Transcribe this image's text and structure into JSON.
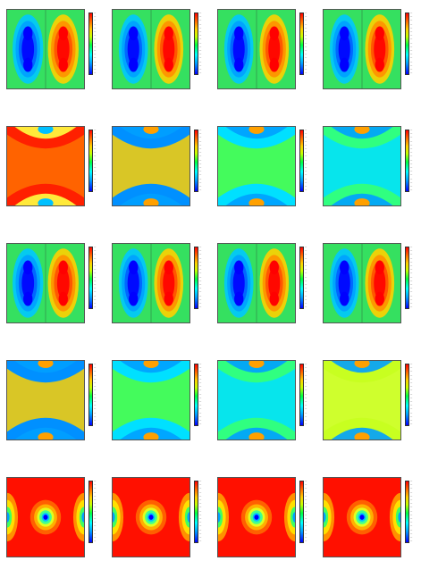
{
  "figure": {
    "rows": [
      {
        "name": "row-1",
        "panels": [
          "antisymmetric-v",
          "antisymmetric-v",
          "antisymmetric-v",
          "antisymmetric-v"
        ]
      },
      {
        "name": "row-2",
        "panels": [
          "top-bottom",
          "top-bottom",
          "top-bottom",
          "top-bottom"
        ]
      },
      {
        "name": "row-3",
        "panels": [
          "antisymmetric-v",
          "antisymmetric-v",
          "antisymmetric-v",
          "antisymmetric-v"
        ]
      },
      {
        "name": "row-4",
        "panels": [
          "top-bottom",
          "top-bottom",
          "top-bottom",
          "top-bottom"
        ]
      },
      {
        "name": "row-5",
        "panels": [
          "center-hole",
          "center-hole",
          "center-hole",
          "center-hole"
        ]
      }
    ],
    "colormap": [
      "#0000ff",
      "#00a0ff",
      "#00ffff",
      "#00ff40",
      "#c8ff00",
      "#ffd000",
      "#ff7000",
      "#ff0000"
    ],
    "background_color": "#ffffff"
  }
}
